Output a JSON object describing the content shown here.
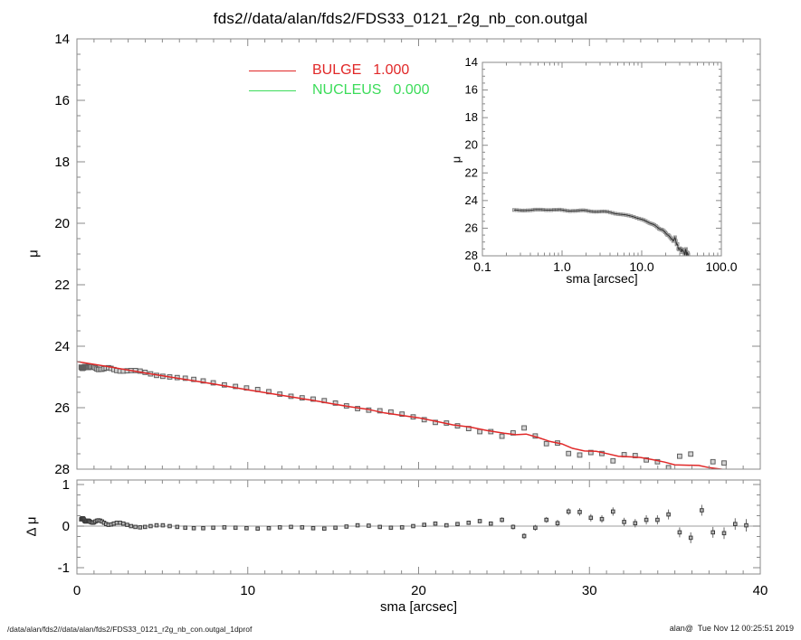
{
  "title": "fds2//data/alan/fds2/FDS33_0121_r2g_nb_con.outgal",
  "footer": {
    "left_text": "/data/alan/fds2//data/alan/fds2/FDS33_0121_r2g_nb_con.outgal_1dprof",
    "right_text": "alan@  Tue Nov 12 00:25:51 2019"
  },
  "colors": {
    "bulge_red": "#e12828",
    "nucleus_green": "#3cdc5a",
    "frame": "#8a8a8a",
    "zero_line": "#b0b0b0",
    "point_stroke": "#5f5f5f",
    "point_fill": "#d4d4d4"
  },
  "main_plot": {
    "ylabel": "μ",
    "ylim": [
      14,
      28
    ],
    "xlim": [
      0,
      40
    ],
    "yticks": [
      "14",
      "16",
      "18",
      "20",
      "22",
      "24",
      "26",
      "28"
    ]
  },
  "inset": {
    "xlabel": "sma [arcsec]",
    "ylabel": "μ",
    "x_scale": "log",
    "xlim": [
      0.1,
      100
    ],
    "ylim": [
      14,
      28
    ],
    "xticks": [
      "0.1",
      "1.0",
      "10.0",
      "100.0"
    ],
    "yticks": [
      "14",
      "16",
      "18",
      "20",
      "22",
      "24",
      "26",
      "28"
    ]
  },
  "residual": {
    "ylabel": "Δ μ",
    "xlabel": "sma [arcsec]",
    "ylim": [
      -1.15,
      1.15
    ],
    "xlim": [
      0,
      40
    ],
    "yticks": [
      "1",
      "0",
      "-1"
    ],
    "xticks": [
      "0",
      "10",
      "20",
      "30",
      "40"
    ]
  },
  "chart_data": {
    "type": "scatter",
    "title": "fds2//data/alan/fds2/FDS33_0121_r2g_nb_con.outgal",
    "xlabel": "sma [arcsec]",
    "ylabel": "μ",
    "y_axis_inverted": true,
    "legend_position": "top-center",
    "components": [
      {
        "name": "BULGE",
        "value": "1.000",
        "color": "#e12828"
      },
      {
        "name": "NUCLEUS",
        "value": "0.000",
        "color": "#3cdc5a"
      }
    ],
    "sma": [
      0.25,
      0.27,
      0.29,
      0.32,
      0.34,
      0.37,
      0.4,
      0.43,
      0.46,
      0.5,
      0.54,
      0.58,
      0.63,
      0.68,
      0.73,
      0.79,
      0.86,
      0.93,
      1.0,
      1.08,
      1.17,
      1.26,
      1.36,
      1.47,
      1.59,
      1.71,
      1.85,
      2.0,
      2.16,
      2.33,
      2.52,
      2.72,
      2.94,
      3.17,
      3.42,
      3.7,
      3.99,
      4.31,
      4.66,
      5.03,
      5.43,
      5.87,
      6.34,
      6.84,
      7.39,
      7.98,
      8.63,
      9.28,
      9.93,
      10.58,
      11.23,
      11.88,
      12.53,
      13.18,
      13.83,
      14.48,
      15.13,
      15.78,
      16.43,
      17.08,
      17.73,
      18.38,
      19.03,
      19.68,
      20.33,
      20.98,
      21.63,
      22.28,
      22.93,
      23.58,
      24.23,
      24.88,
      25.53,
      26.18,
      26.83,
      27.48,
      28.13,
      28.78,
      29.43,
      30.08,
      30.73,
      31.38,
      32.03,
      32.68,
      33.33,
      33.98,
      34.63,
      35.28,
      35.93,
      36.58,
      37.23,
      37.88,
      38.53,
      39.18
    ],
    "mu": [
      24.68,
      24.69,
      24.71,
      24.72,
      24.72,
      24.71,
      24.7,
      24.68,
      24.66,
      24.66,
      24.66,
      24.67,
      24.69,
      24.69,
      24.69,
      24.67,
      24.67,
      24.66,
      24.68,
      24.71,
      24.74,
      24.76,
      24.75,
      24.75,
      24.73,
      24.71,
      24.7,
      24.72,
      24.76,
      24.79,
      24.81,
      24.81,
      24.8,
      24.79,
      24.79,
      24.81,
      24.85,
      24.9,
      24.95,
      24.98,
      25.0,
      25.02,
      25.04,
      25.08,
      25.13,
      25.19,
      25.26,
      25.31,
      25.36,
      25.41,
      25.48,
      25.56,
      25.63,
      25.68,
      25.72,
      25.77,
      25.85,
      25.94,
      26.03,
      26.08,
      26.1,
      26.14,
      26.21,
      26.3,
      26.39,
      26.48,
      26.5,
      26.59,
      26.68,
      26.78,
      26.78,
      26.93,
      26.82,
      26.66,
      26.92,
      27.17,
      27.15,
      27.49,
      27.54,
      27.46,
      27.49,
      27.73,
      27.53,
      27.56,
      27.7,
      27.76,
      27.95,
      27.58,
      27.51,
      28.23,
      27.76,
      27.8,
      28.08,
      28.11
    ],
    "delta_mu": [
      0.16,
      0.17,
      0.18,
      0.19,
      0.19,
      0.18,
      0.16,
      0.14,
      0.12,
      0.11,
      0.11,
      0.12,
      0.13,
      0.13,
      0.12,
      0.1,
      0.09,
      0.08,
      0.09,
      0.11,
      0.13,
      0.14,
      0.13,
      0.11,
      0.08,
      0.05,
      0.03,
      0.04,
      0.06,
      0.08,
      0.08,
      0.06,
      0.03,
      0.0,
      -0.02,
      -0.03,
      -0.02,
      0.0,
      0.02,
      0.02,
      0.0,
      -0.02,
      -0.04,
      -0.05,
      -0.05,
      -0.04,
      -0.03,
      -0.04,
      -0.05,
      -0.06,
      -0.05,
      -0.03,
      -0.02,
      -0.03,
      -0.05,
      -0.06,
      -0.04,
      -0.01,
      0.02,
      0.01,
      -0.02,
      -0.04,
      -0.03,
      0.0,
      0.03,
      0.06,
      0.02,
      0.05,
      0.08,
      0.12,
      0.06,
      0.15,
      -0.02,
      -0.24,
      -0.04,
      0.15,
      0.07,
      0.35,
      0.34,
      0.2,
      0.17,
      0.35,
      0.1,
      0.07,
      0.15,
      0.15,
      0.28,
      -0.15,
      -0.28,
      0.38,
      -0.15,
      -0.17,
      0.05,
      0.02
    ],
    "mu_err": [
      0,
      0,
      0,
      0,
      0,
      0,
      0,
      0,
      0,
      0,
      0,
      0,
      0,
      0,
      0,
      0,
      0,
      0,
      0,
      0,
      0,
      0,
      0,
      0,
      0,
      0,
      0,
      0,
      0,
      0,
      0,
      0,
      0,
      0,
      0,
      0,
      0,
      0,
      0,
      0,
      0,
      0,
      0,
      0,
      0,
      0,
      0,
      0,
      0,
      0,
      0,
      0,
      0,
      0,
      0,
      0,
      0,
      0,
      0,
      0,
      0,
      0,
      0,
      0.03,
      0.03,
      0.04,
      0.04,
      0.04,
      0.05,
      0.05,
      0.05,
      0.06,
      0.06,
      0.07,
      0.07,
      0.07,
      0.08,
      0.08,
      0.09,
      0.09,
      0.09,
      0.1,
      0.1,
      0.1,
      0.11,
      0.11,
      0.12,
      0.12,
      0.13,
      0.13,
      0.13,
      0.14,
      0.14,
      0.15
    ],
    "bulge_model": {
      "x": [
        0,
        2,
        4,
        6,
        8,
        10,
        12,
        14,
        15,
        16,
        17,
        18,
        19,
        20,
        21,
        22,
        23,
        24,
        25,
        25.7,
        26.3,
        27,
        27.7,
        28.4,
        29,
        29.7,
        30.4,
        31,
        31.7,
        32.4,
        33,
        33.7,
        34.4,
        35,
        35.7,
        36.4,
        37,
        37.7,
        38.4,
        39.2
      ],
      "mu": [
        24.5,
        24.68,
        24.87,
        25.05,
        25.23,
        25.42,
        25.6,
        25.78,
        25.88,
        25.97,
        26.05,
        26.17,
        26.25,
        26.33,
        26.44,
        26.56,
        26.63,
        26.74,
        26.83,
        26.88,
        26.86,
        26.97,
        27.1,
        27.18,
        27.32,
        27.41,
        27.42,
        27.49,
        27.58,
        27.6,
        27.62,
        27.69,
        27.77,
        27.86,
        27.87,
        27.88,
        27.95,
        28.0,
        28.05,
        28.12
      ]
    }
  }
}
